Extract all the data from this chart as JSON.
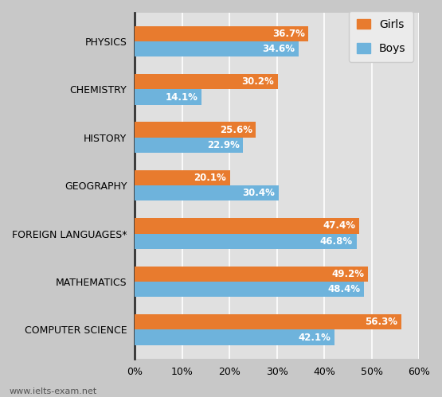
{
  "categories": [
    "COMPUTER SCIENCE",
    "MATHEMATICS",
    "FOREIGN LANGUAGES*",
    "GEOGRAPHY",
    "HISTORY",
    "CHEMISTRY",
    "PHYSICS"
  ],
  "girls": [
    56.3,
    49.2,
    47.4,
    20.1,
    25.6,
    30.2,
    36.7
  ],
  "boys": [
    42.1,
    48.4,
    46.8,
    30.4,
    22.9,
    14.1,
    34.6
  ],
  "girl_color": "#E87B2E",
  "boy_color": "#6EB3DC",
  "bar_height": 0.32,
  "xlim": [
    0,
    60
  ],
  "xtick_values": [
    0,
    10,
    20,
    30,
    40,
    50,
    60
  ],
  "xtick_labels": [
    "0%",
    "10%",
    "20%",
    "30%",
    "40%",
    "50%",
    "60%"
  ],
  "label_fontsize": 8.5,
  "tick_fontsize": 9,
  "ytick_fontsize": 9,
  "legend_labels": [
    "Girls",
    "Boys"
  ],
  "watermark": "www.ielts-exam.net",
  "fig_bg_color": "#C8C8C8",
  "plot_bg_color": "#E0E0E0",
  "legend_bg_color": "#EBEBEB",
  "grid_color": "#FFFFFF",
  "spine_color": "#333333"
}
